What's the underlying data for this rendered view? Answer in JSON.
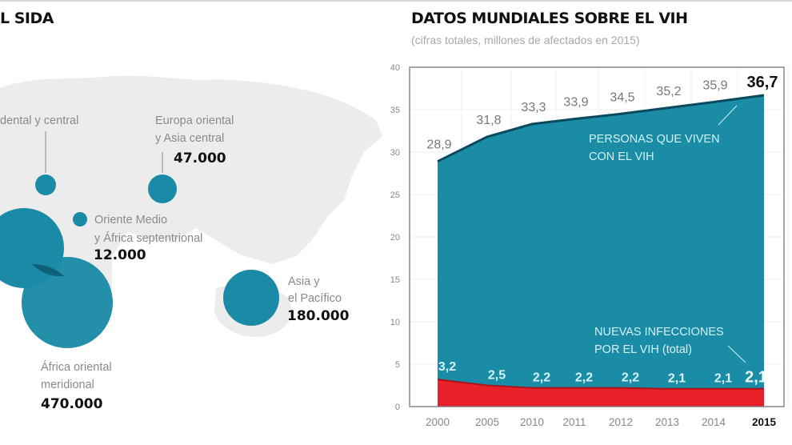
{
  "left_panel": {
    "title": "L SIDA",
    "regions": [
      {
        "id": "europa-occidental",
        "label_lines": [
          "dental y central"
        ],
        "value": ""
      },
      {
        "id": "europa-oriental",
        "label_lines": [
          "Europa oriental",
          "y Asia central"
        ],
        "value": "47.000"
      },
      {
        "id": "oriente-medio",
        "label_lines": [
          "Oriente Medio",
          "y África septentrional"
        ],
        "value": "12.000"
      },
      {
        "id": "asia-pacifico",
        "label_lines": [
          "Asia y",
          "el Pacífico"
        ],
        "value": "180.000"
      },
      {
        "id": "africa-oriental",
        "label_lines": [
          "África oriental",
          "meridional"
        ],
        "value": "470.000"
      },
      {
        "id": "africa-occidental",
        "label_lines": [],
        "value": ""
      }
    ],
    "colors": {
      "bubble": "#1a8aa6",
      "bubble_overlap": "#0e5f78",
      "land": "#e9e9e9"
    }
  },
  "chart_data": {
    "type": "area",
    "title": "DATOS MUNDIALES SOBRE EL VIH",
    "subtitle": "(cifras totales, millones de afectados en 2015)",
    "xlabel": "",
    "ylabel": "",
    "categories": [
      "2000",
      "2005",
      "2010",
      "2011",
      "2012",
      "2013",
      "2014",
      "2015"
    ],
    "highlight_category": "2015",
    "ylim": [
      0,
      40
    ],
    "yticks": [
      0,
      5,
      10,
      15,
      20,
      25,
      30,
      35,
      40
    ],
    "grid": true,
    "series": [
      {
        "name": "PERSONAS QUE VIVEN CON EL VIH",
        "annotation_lines": [
          "PERSONAS QUE VIVEN",
          "CON EL VIH"
        ],
        "values": [
          28.9,
          31.8,
          33.3,
          33.9,
          34.5,
          35.2,
          35.9,
          36.7
        ],
        "labels": [
          "28,9",
          "31,8",
          "33,3",
          "33,9",
          "34,5",
          "35,2",
          "35,9",
          "36,7"
        ],
        "color": "#1a8ca6",
        "line_color": "#0b4a5e"
      },
      {
        "name": "NUEVAS INFECCIONES POR EL VIH (total)",
        "annotation_lines": [
          "NUEVAS INFECCIONES",
          "POR EL VIH (total)"
        ],
        "values": [
          3.2,
          2.5,
          2.2,
          2.2,
          2.2,
          2.1,
          2.1,
          2.1
        ],
        "labels": [
          "3,2",
          "2,5",
          "2,2",
          "2,2",
          "2,2",
          "2,1",
          "2,1",
          "2,1"
        ],
        "color": "#e8202a",
        "line_color": "#a8141b"
      }
    ]
  }
}
